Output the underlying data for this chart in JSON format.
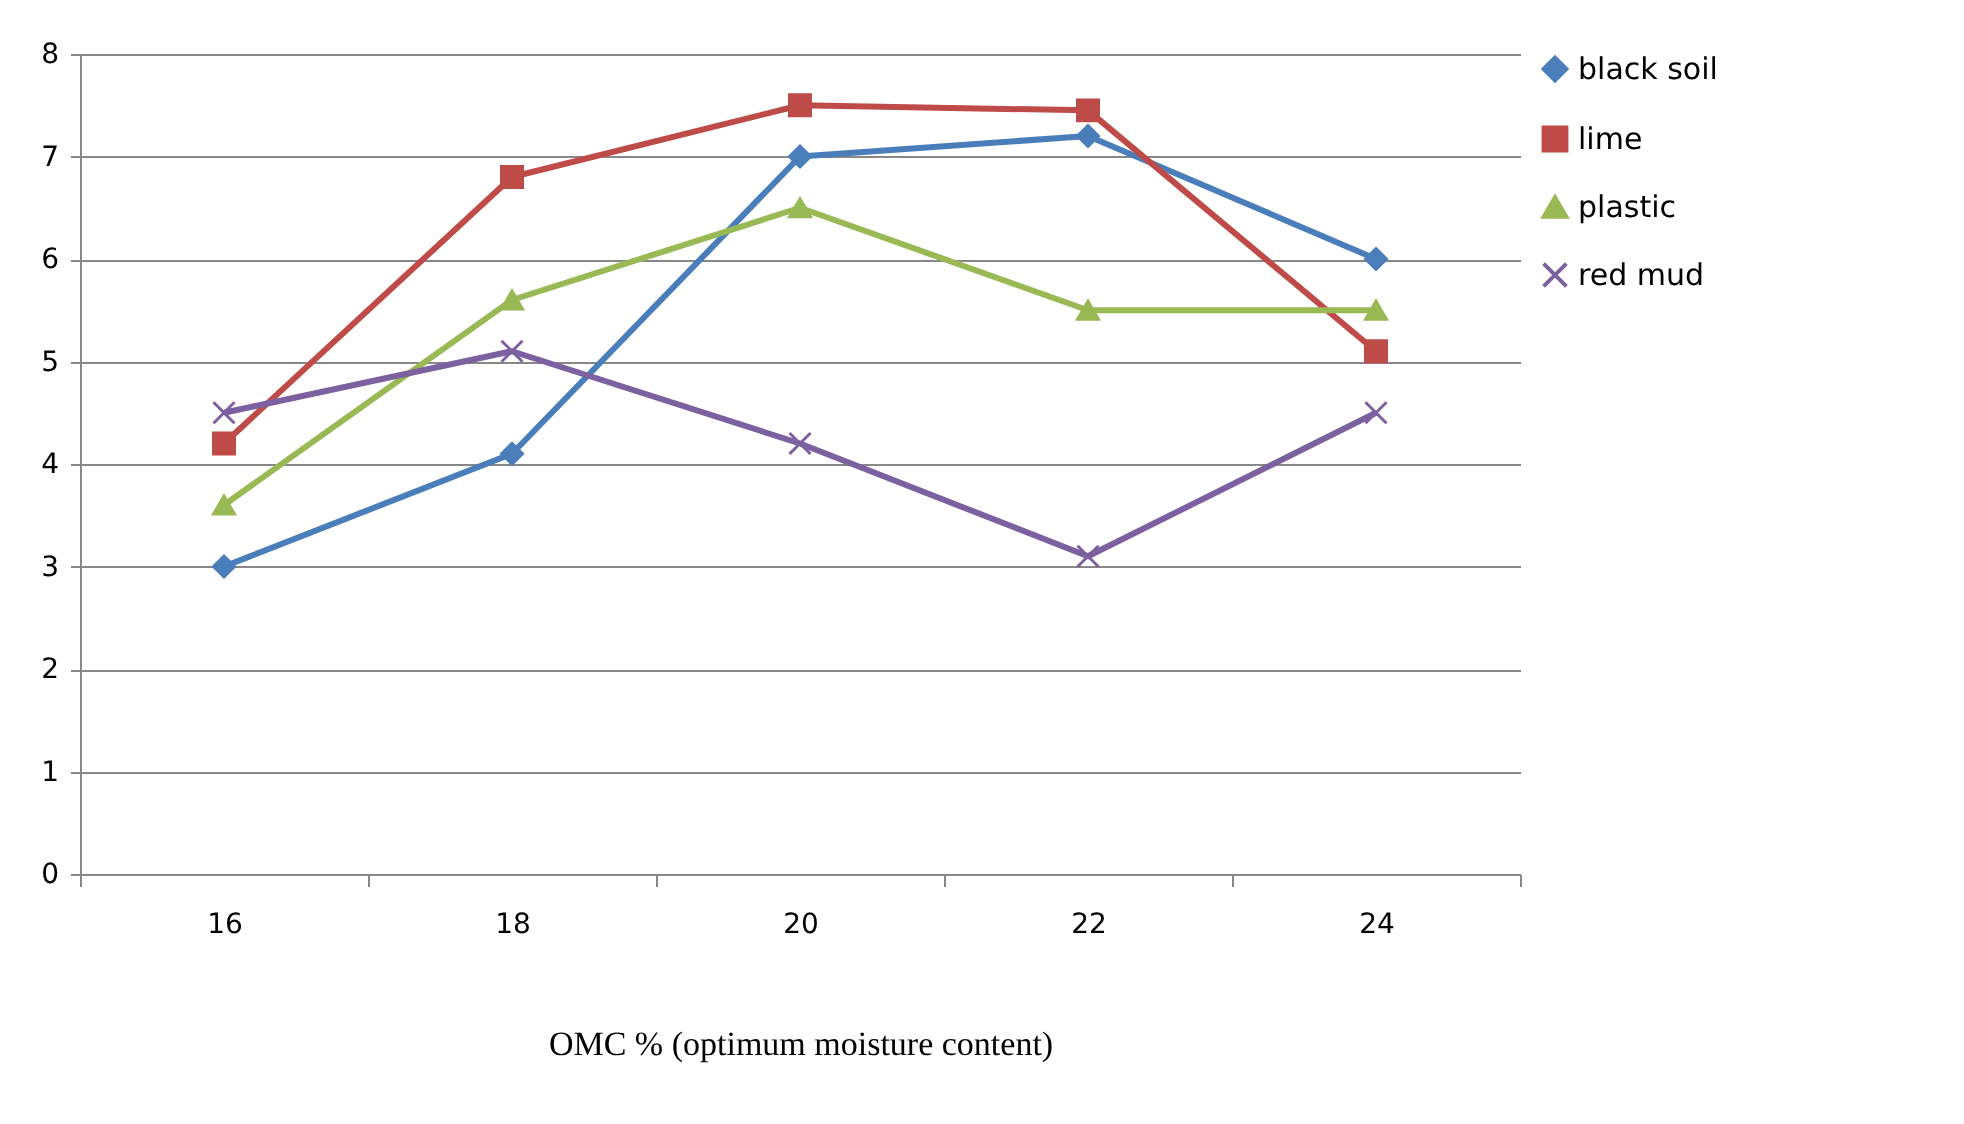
{
  "chart_data": {
    "type": "line",
    "xlabel": "OMC % (optimum moisture content)",
    "categories": [
      "16",
      "18",
      "20",
      "22",
      "24"
    ],
    "series": [
      {
        "name": "black soil",
        "color": "#4a7ebb",
        "marker": "diamond",
        "values": [
          3,
          4.1,
          7,
          7.2,
          6
        ]
      },
      {
        "name": "lime",
        "color": "#be4b48",
        "marker": "square",
        "values": [
          4.2,
          6.8,
          7.5,
          7.45,
          5.1
        ]
      },
      {
        "name": "plastic",
        "color": "#98b954",
        "marker": "triangle",
        "values": [
          3.6,
          5.6,
          6.5,
          5.5,
          5.5
        ]
      },
      {
        "name": "red mud",
        "color": "#7d60a0",
        "marker": "cross",
        "values": [
          4.5,
          5.1,
          4.2,
          3.1,
          4.5
        ]
      }
    ],
    "ylim": [
      0,
      8
    ],
    "yticks": [
      0,
      1,
      2,
      3,
      4,
      5,
      6,
      7,
      8
    ],
    "grid": "y",
    "legend": "right",
    "line_style": "solid"
  }
}
